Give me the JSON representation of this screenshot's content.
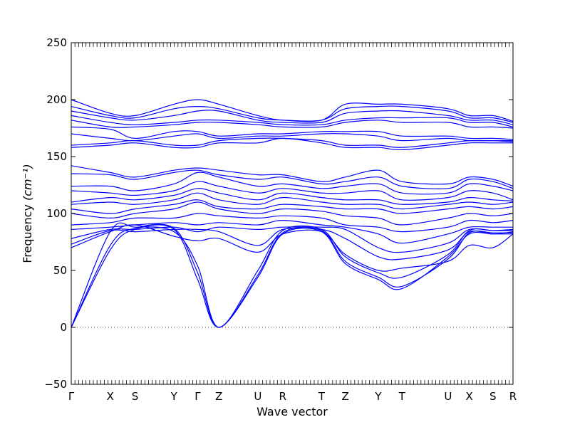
{
  "chart_data": {
    "type": "line",
    "title": "",
    "xlabel": "Wave vector",
    "ylabel_text": "Frequency",
    "ylabel_unit": "(cm⁻¹)",
    "ylim": [
      -50,
      250
    ],
    "yticks": [
      -50,
      0,
      50,
      100,
      150,
      200,
      250
    ],
    "xlim": [
      0,
      18.7
    ],
    "xticks": [
      {
        "label": "Γ",
        "pos": 0
      },
      {
        "label": "X",
        "pos": 1.65
      },
      {
        "label": "S",
        "pos": 2.7
      },
      {
        "label": "Y",
        "pos": 4.35
      },
      {
        "label": "Γ",
        "pos": 5.35
      },
      {
        "label": "Z",
        "pos": 6.25
      },
      {
        "label": "U",
        "pos": 7.9
      },
      {
        "label": "R",
        "pos": 8.95
      },
      {
        "label": "T",
        "pos": 10.6
      },
      {
        "label": "Z",
        "pos": 11.6
      },
      {
        "label": "Y",
        "pos": 13.0
      },
      {
        "label": "T",
        "pos": 14.0
      },
      {
        "label": "U",
        "pos": 15.95
      },
      {
        "label": "X",
        "pos": 16.85
      },
      {
        "label": "S",
        "pos": 17.85
      },
      {
        "label": "R",
        "pos": 18.7
      }
    ],
    "grid": false,
    "zero_line": {
      "y": 0,
      "style": "dotted"
    },
    "series_color": "#0000ff",
    "series": [
      {
        "values": [
          0,
          68,
          86,
          86,
          42,
          0,
          44,
          82,
          84,
          56,
          42,
          34,
          62,
          82,
          82,
          82
        ]
      },
      {
        "values": [
          0,
          72,
          87,
          87,
          48,
          0,
          46,
          83,
          85,
          58,
          44,
          36,
          60,
          83,
          83,
          83
        ]
      },
      {
        "values": [
          0,
          84,
          88,
          84,
          54,
          0,
          50,
          85,
          86,
          62,
          48,
          44,
          64,
          85,
          85,
          85
        ]
      },
      {
        "values": [
          70,
          84,
          90,
          80,
          76,
          78,
          66,
          82,
          84,
          64,
          50,
          52,
          58,
          72,
          70,
          82
        ]
      },
      {
        "values": [
          73,
          85,
          84,
          86,
          86,
          84,
          72,
          86,
          86,
          78,
          62,
          60,
          68,
          84,
          82,
          84
        ]
      },
      {
        "values": [
          78,
          86,
          86,
          88,
          84,
          88,
          86,
          88,
          88,
          86,
          70,
          66,
          74,
          86,
          85,
          86
        ]
      },
      {
        "values": [
          86,
          88,
          90,
          92,
          90,
          92,
          90,
          94,
          90,
          88,
          82,
          74,
          82,
          88,
          88,
          88
        ]
      },
      {
        "values": [
          90,
          92,
          96,
          96,
          100,
          98,
          96,
          98,
          96,
          90,
          88,
          84,
          88,
          94,
          92,
          94
        ]
      },
      {
        "values": [
          100,
          96,
          100,
          104,
          110,
          104,
          100,
          104,
          102,
          98,
          96,
          90,
          96,
          100,
          98,
          100
        ]
      },
      {
        "values": [
          104,
          100,
          104,
          108,
          112,
          106,
          104,
          108,
          106,
          104,
          104,
          100,
          104,
          106,
          104,
          106
        ]
      },
      {
        "values": [
          108,
          110,
          108,
          112,
          118,
          112,
          108,
          114,
          110,
          108,
          108,
          104,
          108,
          110,
          108,
          110
        ]
      },
      {
        "values": [
          110,
          114,
          112,
          116,
          122,
          118,
          112,
          118,
          114,
          112,
          112,
          108,
          110,
          114,
          112,
          111
        ]
      },
      {
        "values": [
          120,
          118,
          116,
          120,
          128,
          124,
          118,
          122,
          118,
          118,
          120,
          112,
          114,
          120,
          118,
          112
        ]
      },
      {
        "values": [
          124,
          124,
          120,
          126,
          136,
          132,
          124,
          126,
          122,
          124,
          126,
          118,
          118,
          126,
          124,
          120
        ]
      },
      {
        "values": [
          135,
          134,
          130,
          136,
          138,
          134,
          130,
          132,
          126,
          128,
          132,
          124,
          122,
          130,
          128,
          122
        ]
      },
      {
        "values": [
          142,
          136,
          132,
          138,
          140,
          138,
          134,
          134,
          128,
          132,
          138,
          128,
          126,
          132,
          130,
          124
        ]
      },
      {
        "values": [
          158,
          160,
          162,
          158,
          158,
          162,
          162,
          166,
          162,
          158,
          158,
          156,
          160,
          162,
          162,
          162
        ]
      },
      {
        "values": [
          160,
          162,
          164,
          160,
          160,
          164,
          166,
          166,
          164,
          160,
          160,
          158,
          162,
          164,
          164,
          163
        ]
      },
      {
        "values": [
          170,
          166,
          164,
          168,
          170,
          166,
          168,
          168,
          170,
          170,
          168,
          164,
          166,
          164,
          164,
          164
        ]
      },
      {
        "values": [
          176,
          174,
          166,
          172,
          172,
          168,
          170,
          170,
          172,
          172,
          172,
          168,
          168,
          166,
          166,
          165
        ]
      },
      {
        "values": [
          182,
          176,
          176,
          178,
          180,
          180,
          178,
          176,
          176,
          180,
          182,
          180,
          180,
          176,
          176,
          175
        ]
      },
      {
        "values": [
          186,
          180,
          178,
          180,
          182,
          182,
          180,
          178,
          178,
          182,
          184,
          184,
          184,
          180,
          180,
          176
        ]
      },
      {
        "values": [
          190,
          184,
          182,
          186,
          190,
          190,
          182,
          180,
          180,
          188,
          190,
          190,
          186,
          182,
          182,
          178
        ]
      },
      {
        "values": [
          194,
          186,
          184,
          192,
          194,
          192,
          184,
          182,
          182,
          192,
          194,
          194,
          190,
          184,
          184,
          180
        ]
      },
      {
        "values": [
          200,
          188,
          186,
          196,
          200,
          196,
          186,
          182,
          182,
          196,
          196,
          196,
          192,
          186,
          186,
          181
        ]
      }
    ]
  }
}
